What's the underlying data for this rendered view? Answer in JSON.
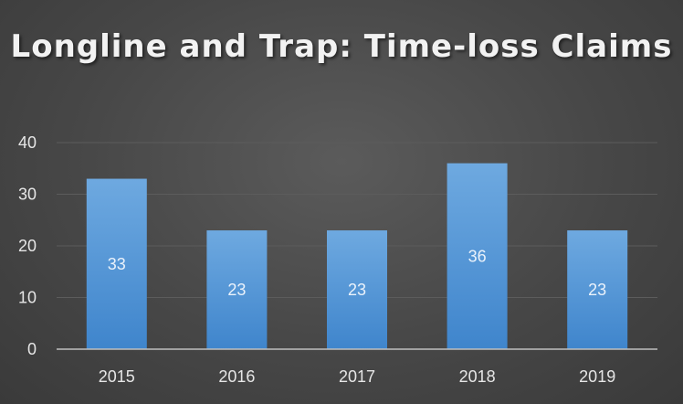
{
  "chart_data": {
    "type": "bar",
    "title": "Longline and Trap: Time-loss Claims",
    "categories": [
      "2015",
      "2016",
      "2017",
      "2018",
      "2019"
    ],
    "values": [
      33,
      23,
      23,
      36,
      23
    ],
    "data_labels": [
      "33",
      "23",
      "23",
      "36",
      "23"
    ],
    "ylim": [
      0,
      40
    ],
    "yticks": [
      0,
      10,
      20,
      30,
      40
    ],
    "xlabel": "",
    "ylabel": "",
    "grid": true,
    "legend": "none",
    "colors": {
      "bar_top": "#6ea9e0",
      "bar_bottom": "#3f85cc",
      "grid": "#5c5c5c",
      "axis": "#bfbfbf",
      "text": "#e6e6e6"
    }
  }
}
